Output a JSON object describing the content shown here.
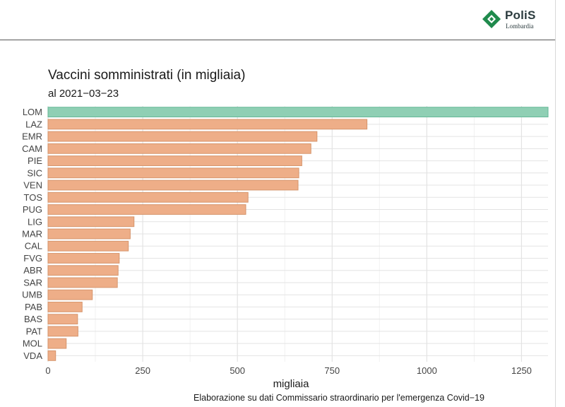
{
  "logo": {
    "name": "PoliS",
    "subtitle": "Lombardia",
    "colors": {
      "mark": "#1f8a4c",
      "text": "#2b3b3e"
    }
  },
  "caption": "Elaborazione su dati Commissario straordinario per l'emergenza Covid−19",
  "chart_data": {
    "type": "bar",
    "orientation": "horizontal",
    "title": "Vaccini somministrati (in migliaia)",
    "subtitle": "al 2021−03−23",
    "xlabel": "migliaia",
    "ylabel": "",
    "categories": [
      "LOM",
      "LAZ",
      "EMR",
      "CAM",
      "PIE",
      "SIC",
      "VEN",
      "TOS",
      "PUG",
      "LIG",
      "MAR",
      "CAL",
      "FVG",
      "ABR",
      "SAR",
      "UMB",
      "PAB",
      "BAS",
      "PAT",
      "MOL",
      "VDA"
    ],
    "values": [
      1325,
      842,
      710,
      694,
      670,
      662,
      660,
      528,
      522,
      227,
      217,
      212,
      188,
      185,
      183,
      117,
      90,
      78,
      79,
      48,
      20
    ],
    "highlight": "LOM",
    "xlim": [
      0,
      1320
    ],
    "xticks": [
      0,
      250,
      500,
      750,
      1000,
      1250
    ],
    "grid": true,
    "colors": {
      "highlight_fill": "#8fcfb4",
      "highlight_stroke": "#66b898",
      "bar_fill": "#eeae88",
      "bar_stroke": "#d6956c",
      "grid_major": "#e3e3e3",
      "grid_minor": "#f1f1f1"
    }
  }
}
